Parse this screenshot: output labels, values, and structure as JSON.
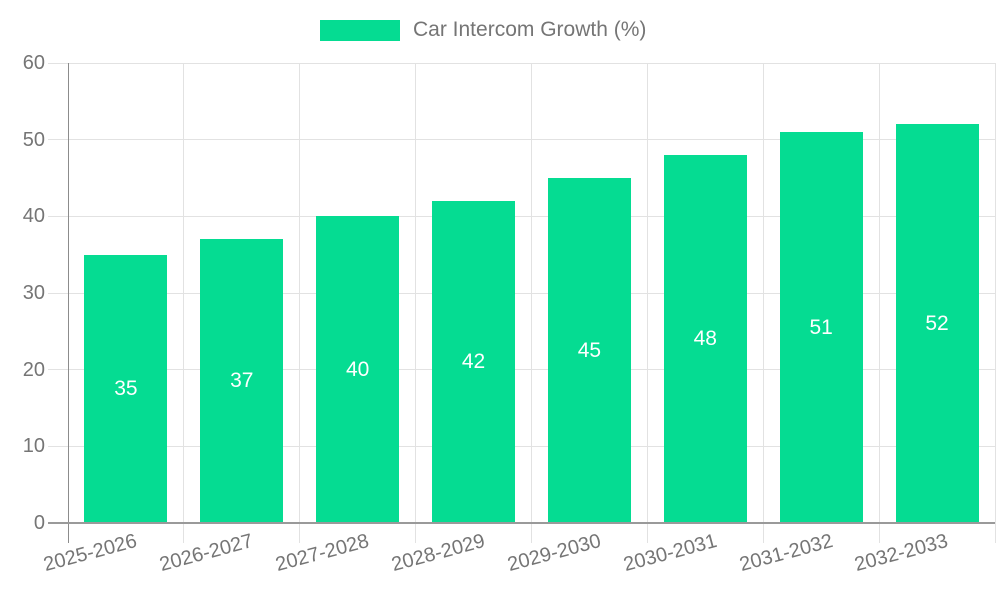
{
  "legend": {
    "label": "Car Intercom Growth (%)"
  },
  "colors": {
    "bar": "#05DC92",
    "grid": "#E2E2E2",
    "axis_y": "#8C8C8C",
    "axis_x": "#9A9A9A",
    "text": "#757575",
    "value_label": "#FFFFFF",
    "background": "#FFFFFF"
  },
  "chart_data": {
    "type": "bar",
    "title": "Car Intercom Growth (%)",
    "categories": [
      "2025-2026",
      "2026-2027",
      "2027-2028",
      "2028-2029",
      "2029-2030",
      "2030-2031",
      "2031-2032",
      "2032-2033"
    ],
    "series": [
      {
        "name": "Car Intercom Growth (%)",
        "values": [
          35,
          37,
          40,
          42,
          45,
          48,
          51,
          52
        ]
      }
    ],
    "xlabel": "",
    "ylabel": "",
    "ylim": [
      0,
      60
    ],
    "ytick_step": 10,
    "grid": true,
    "legend_position": "top",
    "value_labels": "inside-center",
    "x_label_rotation_deg": -15
  }
}
